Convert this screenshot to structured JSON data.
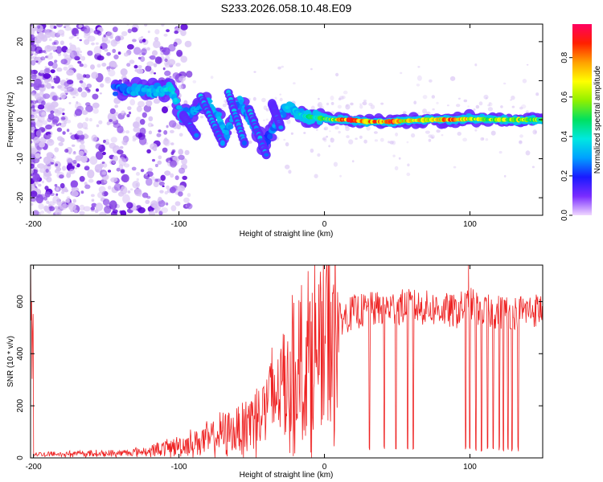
{
  "figure_title": "S233.2026.058.10.48.E09",
  "colors": {
    "snr_line": "#ee2222",
    "frame": "#000000",
    "scatter_faint": "#d9c4f4",
    "scatter_mid": "#8c4be8",
    "scatter_dark": "#5a00d8"
  },
  "chart_data": [
    {
      "type": "heatmap",
      "title": "",
      "xlabel": "Height of straight line (km)",
      "ylabel": "Frequency (Hz)",
      "xlim": [
        -202,
        150
      ],
      "ylim": [
        -24.5,
        24.5
      ],
      "xticks": [
        -200,
        -100,
        0,
        100
      ],
      "yticks": [
        -20,
        -10,
        0,
        10,
        20
      ],
      "colorbar": {
        "label": "Normalized spectral amplitude",
        "range": [
          0,
          0.97
        ],
        "ticks": [
          0,
          0.2,
          0.4,
          0.6,
          0.8
        ],
        "tick_labels": [
          "0.0",
          "0.2",
          "0.4",
          "0.6",
          "0.8"
        ],
        "colormap": [
          "#f0d8ff",
          "#7a2cff",
          "#1a1aff",
          "#00a0ff",
          "#00e8e0",
          "#00e060",
          "#90f000",
          "#ffff00",
          "#ffa000",
          "#ff2000",
          "#ff0060"
        ]
      },
      "ridge": [
        {
          "x": -145,
          "y": 7.5,
          "a": 0.25
        },
        {
          "x": -130,
          "y": 7.8,
          "a": 0.3
        },
        {
          "x": -115,
          "y": 7.4,
          "a": 0.35
        },
        {
          "x": -105,
          "y": 7.9,
          "a": 0.4
        },
        {
          "x": -98,
          "y": 0.5,
          "a": 0.3
        },
        {
          "x": -80,
          "y": 4.5,
          "a": 0.3
        },
        {
          "x": -72,
          "y": 0.0,
          "a": 0.35
        },
        {
          "x": -68,
          "y": -4.0,
          "a": 0.3
        },
        {
          "x": -58,
          "y": 5.0,
          "a": 0.3
        },
        {
          "x": -48,
          "y": -2.0,
          "a": 0.3
        },
        {
          "x": -42,
          "y": -7.0,
          "a": 0.25
        },
        {
          "x": -34,
          "y": -1.0,
          "a": 0.3
        },
        {
          "x": -25,
          "y": 3.5,
          "a": 0.35
        },
        {
          "x": -15,
          "y": 1.0,
          "a": 0.4
        },
        {
          "x": -5,
          "y": 0.5,
          "a": 0.5
        },
        {
          "x": 5,
          "y": 0.0,
          "a": 0.6
        },
        {
          "x": 15,
          "y": 0.0,
          "a": 0.9
        },
        {
          "x": 30,
          "y": -0.5,
          "a": 0.8
        },
        {
          "x": 45,
          "y": -0.5,
          "a": 0.85
        },
        {
          "x": 60,
          "y": -0.2,
          "a": 0.75
        },
        {
          "x": 75,
          "y": 0.0,
          "a": 0.7
        },
        {
          "x": 90,
          "y": 0.0,
          "a": 0.85
        },
        {
          "x": 100,
          "y": 0.2,
          "a": 0.7
        },
        {
          "x": 115,
          "y": 0.0,
          "a": 0.6
        },
        {
          "x": 130,
          "y": 0.0,
          "a": 0.65
        },
        {
          "x": 150,
          "y": 0.0,
          "a": 0.55
        }
      ]
    },
    {
      "type": "line",
      "title": "",
      "xlabel": "Height of straight line (km)",
      "ylabel": "SNR (10 * v/v)",
      "xlim": [
        -202,
        150
      ],
      "ylim": [
        0,
        740
      ],
      "xticks": [
        -200,
        -100,
        0,
        100
      ],
      "yticks": [
        0,
        200,
        400,
        600
      ],
      "series": [
        {
          "name": "SNR",
          "x": [
            -200,
            -170,
            -140,
            -120,
            -100,
            -80,
            -60,
            -40,
            -30,
            -20,
            -10,
            0,
            10,
            20,
            40,
            60,
            80,
            90,
            100,
            110,
            130,
            150
          ],
          "values": [
            15,
            18,
            20,
            30,
            50,
            80,
            120,
            220,
            300,
            360,
            430,
            470,
            530,
            560,
            575,
            580,
            570,
            560,
            590,
            560,
            560,
            570
          ],
          "spike_max": [
            {
              "x": -21,
              "y": 595
            },
            {
              "x": 99,
              "y": 740
            }
          ],
          "dropouts_x": [
            31,
            41,
            49,
            57,
            61,
            97,
            100,
            104,
            108,
            112,
            116,
            120,
            123,
            126,
            129,
            133
          ]
        }
      ]
    }
  ]
}
